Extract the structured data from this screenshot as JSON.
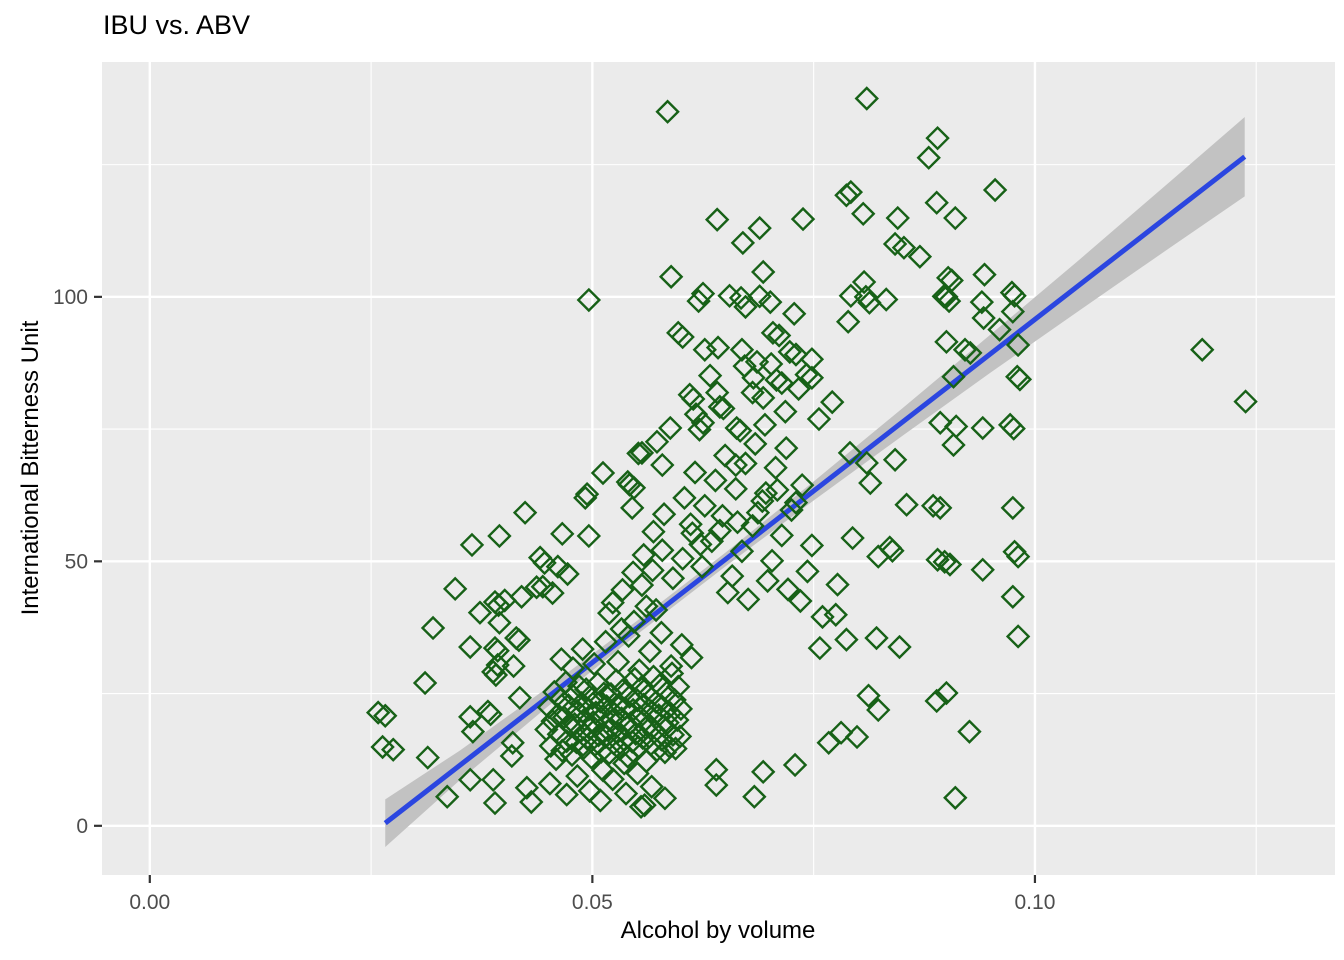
{
  "chart_data": {
    "type": "scatter",
    "title": "IBU vs. ABV",
    "xlabel": "Alcohol by volume",
    "ylabel": "International Bitterness Unit",
    "xlim": [
      -0.0054,
      0.1339
    ],
    "ylim": [
      -9.3,
      144.4
    ],
    "grid": true,
    "legend": "none",
    "x_ticks": {
      "major": [
        0,
        0.05,
        0.1
      ],
      "labels": [
        "0.00",
        "0.05",
        "0.10"
      ],
      "minor": [
        0.025,
        0.075,
        0.125
      ]
    },
    "y_ticks": {
      "major": [
        0,
        50,
        100
      ],
      "labels": [
        "0",
        "50",
        "100"
      ],
      "minor": [
        25,
        75,
        125
      ]
    },
    "style": {
      "panel_bg": "#EBEBEB",
      "grid_major_color": "#FFFFFF",
      "grid_minor_color": "#FFFFFF",
      "point_color": "#176117",
      "point_shape": "open-diamond",
      "smooth_line_color": "#2B46E0",
      "ci_band_color": "#C2C2C2",
      "tick_mark_color": "#333333",
      "tick_label_color": "#4D4D4D",
      "text_color": "#000000"
    },
    "smooth": {
      "type": "lm",
      "x": [
        0.0266,
        0.1237
      ],
      "y": [
        0.5,
        126.5
      ]
    },
    "ci_band": {
      "x": [
        0.0266,
        0.035,
        0.045,
        0.055,
        0.065,
        0.075,
        0.085,
        0.095,
        0.105,
        0.115,
        0.1237
      ],
      "lower": [
        -4.0,
        8.6,
        22.6,
        36.1,
        49.0,
        61.5,
        73.7,
        85.7,
        97.4,
        109.0,
        119.0
      ],
      "upper": [
        5.0,
        14.2,
        26.2,
        38.7,
        51.6,
        65.1,
        78.9,
        92.9,
        107.0,
        121.4,
        134.0
      ]
    },
    "points": [
      [
        0.0585,
        135
      ],
      [
        0.081,
        137.5
      ],
      [
        0.089,
        130
      ],
      [
        0.088,
        126.3
      ],
      [
        0.0792,
        119.8
      ],
      [
        0.0787,
        119.2
      ],
      [
        0.0955,
        120.2
      ],
      [
        0.0641,
        114.6
      ],
      [
        0.0689,
        113
      ],
      [
        0.067,
        110.2
      ],
      [
        0.0738,
        114.7
      ],
      [
        0.0845,
        114.9
      ],
      [
        0.0806,
        115.7
      ],
      [
        0.0889,
        117.8
      ],
      [
        0.091,
        114.9
      ],
      [
        0.0842,
        110
      ],
      [
        0.0852,
        109.3
      ],
      [
        0.087,
        107.6
      ],
      [
        0.0693,
        104.7
      ],
      [
        0.0589,
        103.8
      ],
      [
        0.0496,
        99.4
      ],
      [
        0.062,
        99.2
      ],
      [
        0.0625,
        100.6
      ],
      [
        0.0655,
        100.2
      ],
      [
        0.0668,
        99.8
      ],
      [
        0.0673,
        98.1
      ],
      [
        0.0689,
        100.1
      ],
      [
        0.0701,
        99
      ],
      [
        0.0728,
        96.8
      ],
      [
        0.0792,
        100.2
      ],
      [
        0.0807,
        102.8
      ],
      [
        0.0809,
        100
      ],
      [
        0.0813,
        98.9
      ],
      [
        0.0832,
        99.5
      ],
      [
        0.0897,
        100.1
      ],
      [
        0.0902,
        103.6
      ],
      [
        0.0906,
        103.1
      ],
      [
        0.0943,
        104.2
      ],
      [
        0.09,
        100
      ],
      [
        0.0903,
        99.2
      ],
      [
        0.094,
        99
      ],
      [
        0.0974,
        100.8
      ],
      [
        0.0977,
        100.2
      ],
      [
        0.0975,
        97.2
      ],
      [
        0.0942,
        96
      ],
      [
        0.0789,
        95.3
      ],
      [
        0.0597,
        93.2
      ],
      [
        0.0602,
        92.4
      ],
      [
        0.0704,
        93.2
      ],
      [
        0.0711,
        92.7
      ],
      [
        0.0627,
        90
      ],
      [
        0.0642,
        90.4
      ],
      [
        0.0669,
        90
      ],
      [
        0.0686,
        87.7
      ],
      [
        0.0723,
        89.6
      ],
      [
        0.073,
        89.1
      ],
      [
        0.0742,
        85.3
      ],
      [
        0.0748,
        84.7
      ],
      [
        0.0708,
        84.3
      ],
      [
        0.0714,
        83.7
      ],
      [
        0.0693,
        80.9
      ],
      [
        0.0681,
        81.9
      ],
      [
        0.061,
        81.5
      ],
      [
        0.0614,
        80.7
      ],
      [
        0.0641,
        81.9
      ],
      [
        0.0644,
        79.2
      ],
      [
        0.0625,
        76.2
      ],
      [
        0.0663,
        75.2
      ],
      [
        0.0667,
        74.7
      ],
      [
        0.0588,
        75.2
      ],
      [
        0.0579,
        68.2
      ],
      [
        0.0621,
        74.9
      ],
      [
        0.096,
        93.8
      ],
      [
        0.0981,
        90.9
      ],
      [
        0.09,
        91.5
      ],
      [
        0.0921,
        90
      ],
      [
        0.0927,
        89.4
      ],
      [
        0.0908,
        84.9
      ],
      [
        0.098,
        84.9
      ],
      [
        0.0983,
        84.4
      ],
      [
        0.1189,
        90
      ],
      [
        0.1238,
        80.2
      ],
      [
        0.0893,
        76.2
      ],
      [
        0.0911,
        75.5
      ],
      [
        0.0941,
        75.2
      ],
      [
        0.0972,
        75.8
      ],
      [
        0.0976,
        75.1
      ],
      [
        0.0908,
        72
      ],
      [
        0.0512,
        66.7
      ],
      [
        0.0542,
        64.5
      ],
      [
        0.0547,
        63.9
      ],
      [
        0.054,
        65
      ],
      [
        0.0556,
        70.5
      ],
      [
        0.0573,
        72.6
      ],
      [
        0.0552,
        70.4
      ],
      [
        0.0492,
        62
      ],
      [
        0.0494,
        62.7
      ],
      [
        0.0545,
        60.1
      ],
      [
        0.0662,
        68.2
      ],
      [
        0.0794,
        54.4
      ],
      [
        0.0836,
        52.6
      ],
      [
        0.0839,
        52
      ],
      [
        0.0823,
        50.9
      ],
      [
        0.0885,
        60.5
      ],
      [
        0.089,
        50.3
      ],
      [
        0.0855,
        60.7
      ],
      [
        0.0842,
        69.2
      ],
      [
        0.0814,
        64.8
      ],
      [
        0.081,
        68.6
      ],
      [
        0.0791,
        70.5
      ],
      [
        0.0893,
        60.1
      ],
      [
        0.0975,
        60.1
      ],
      [
        0.0977,
        51.8
      ],
      [
        0.0981,
        50.9
      ],
      [
        0.0898,
        49.9
      ],
      [
        0.0904,
        49.4
      ],
      [
        0.0941,
        48.4
      ],
      [
        0.0975,
        43.3
      ],
      [
        0.0981,
        35.8
      ],
      [
        0.0777,
        45.6
      ],
      [
        0.0775,
        39.9
      ],
      [
        0.076,
        39.5
      ],
      [
        0.0787,
        35.2
      ],
      [
        0.0821,
        35.5
      ],
      [
        0.0847,
        33.8
      ],
      [
        0.0757,
        33.6
      ],
      [
        0.0767,
        15.7
      ],
      [
        0.0781,
        17.6
      ],
      [
        0.0799,
        16.8
      ],
      [
        0.0812,
        24.6
      ],
      [
        0.0823,
        21.9
      ],
      [
        0.0889,
        23.6
      ],
      [
        0.09,
        25.1
      ],
      [
        0.091,
        5.3
      ],
      [
        0.0926,
        17.8
      ],
      [
        0.064,
        10.6
      ],
      [
        0.064,
        7.7
      ],
      [
        0.0683,
        5.5
      ],
      [
        0.0693,
        10.2
      ],
      [
        0.0729,
        11.5
      ],
      [
        0.0555,
        3.6
      ],
      [
        0.0559,
        3.9
      ],
      [
        0.0424,
        59.2
      ],
      [
        0.0395,
        54.8
      ],
      [
        0.0364,
        53.1
      ],
      [
        0.0466,
        55.2
      ],
      [
        0.0496,
        54.8
      ],
      [
        0.0345,
        44.8
      ],
      [
        0.0441,
        50.7
      ],
      [
        0.0446,
        49.7
      ],
      [
        0.0461,
        49
      ],
      [
        0.0472,
        47.6
      ],
      [
        0.0444,
        45.2
      ],
      [
        0.0455,
        44
      ],
      [
        0.0437,
        45.1
      ],
      [
        0.042,
        43.3
      ],
      [
        0.0373,
        40.3
      ],
      [
        0.039,
        42.3
      ],
      [
        0.0394,
        41.7
      ],
      [
        0.0401,
        42.6
      ],
      [
        0.0395,
        38.4
      ],
      [
        0.0414,
        35.5
      ],
      [
        0.0417,
        35.1
      ],
      [
        0.039,
        33.6
      ],
      [
        0.0393,
        33.1
      ],
      [
        0.0362,
        33.8
      ],
      [
        0.032,
        37.4
      ],
      [
        0.0393,
        30.4
      ],
      [
        0.0411,
        30.2
      ],
      [
        0.0311,
        27
      ],
      [
        0.0266,
        20.8
      ],
      [
        0.0258,
        21.4
      ],
      [
        0.0275,
        14.4
      ],
      [
        0.0263,
        14.9
      ],
      [
        0.0314,
        12.9
      ],
      [
        0.0336,
        5.5
      ],
      [
        0.0362,
        20.6
      ],
      [
        0.0365,
        17.8
      ],
      [
        0.0362,
        8.7
      ],
      [
        0.0388,
        29.1
      ],
      [
        0.0391,
        28.5
      ],
      [
        0.0382,
        21.6
      ],
      [
        0.0385,
        21.1
      ],
      [
        0.0388,
        8.7
      ],
      [
        0.039,
        4.3
      ],
      [
        0.0418,
        24.2
      ],
      [
        0.041,
        15.7
      ],
      [
        0.0409,
        13.2
      ],
      [
        0.0431,
        4.5
      ],
      [
        0.0426,
        7.2
      ],
      [
        0.0448,
        18.2
      ],
      [
        0.0451,
        22.4
      ],
      [
        0.0453,
        15.1
      ],
      [
        0.0455,
        19.8
      ],
      [
        0.0457,
        25.3
      ],
      [
        0.0459,
        12.6
      ],
      [
        0.0461,
        21.0
      ],
      [
        0.0462,
        17.3
      ],
      [
        0.0464,
        23.9
      ],
      [
        0.0466,
        14.2
      ],
      [
        0.0468,
        20.5
      ],
      [
        0.047,
        27.1
      ],
      [
        0.0471,
        16.0
      ],
      [
        0.0473,
        22.8
      ],
      [
        0.0475,
        18.9
      ],
      [
        0.0477,
        13.4
      ],
      [
        0.0478,
        24.6
      ],
      [
        0.048,
        19.2
      ],
      [
        0.0482,
        15.8
      ],
      [
        0.0483,
        21.7
      ],
      [
        0.0485,
        26.4
      ],
      [
        0.0487,
        17.9
      ],
      [
        0.0488,
        23.2
      ],
      [
        0.049,
        14.7
      ],
      [
        0.0491,
        20.1
      ],
      [
        0.0493,
        25.8
      ],
      [
        0.0494,
        16.5
      ],
      [
        0.0496,
        22.0
      ],
      [
        0.0497,
        18.4
      ],
      [
        0.0499,
        12.9
      ],
      [
        0.05,
        24.1
      ],
      [
        0.0501,
        19.6
      ],
      [
        0.0503,
        15.3
      ],
      [
        0.0504,
        21.4
      ],
      [
        0.0506,
        26.9
      ],
      [
        0.0507,
        17.1
      ],
      [
        0.0509,
        23.5
      ],
      [
        0.051,
        14.0
      ],
      [
        0.0512,
        20.8
      ],
      [
        0.0513,
        25.0
      ],
      [
        0.0515,
        16.8
      ],
      [
        0.0516,
        22.6
      ],
      [
        0.0518,
        18.0
      ],
      [
        0.0519,
        13.7
      ],
      [
        0.0521,
        24.9
      ],
      [
        0.0522,
        19.9
      ],
      [
        0.0524,
        15.6
      ],
      [
        0.0525,
        21.2
      ],
      [
        0.0527,
        27.5
      ],
      [
        0.0528,
        17.6
      ],
      [
        0.053,
        23.0
      ],
      [
        0.0531,
        14.5
      ],
      [
        0.0533,
        20.3
      ],
      [
        0.0534,
        25.6
      ],
      [
        0.0536,
        16.2
      ],
      [
        0.0537,
        22.2
      ],
      [
        0.0539,
        18.7
      ],
      [
        0.054,
        13.1
      ],
      [
        0.0542,
        24.4
      ],
      [
        0.0543,
        19.4
      ],
      [
        0.0545,
        15.9
      ],
      [
        0.0546,
        21.9
      ],
      [
        0.0548,
        27.8
      ],
      [
        0.0549,
        17.4
      ],
      [
        0.0551,
        23.7
      ],
      [
        0.0552,
        14.9
      ],
      [
        0.0554,
        20.6
      ],
      [
        0.0555,
        26.1
      ],
      [
        0.0557,
        16.6
      ],
      [
        0.0558,
        22.9
      ],
      [
        0.056,
        18.5
      ],
      [
        0.0561,
        12.2
      ],
      [
        0.0563,
        24.7
      ],
      [
        0.0564,
        19.1
      ],
      [
        0.0566,
        15.4
      ],
      [
        0.0567,
        21.6
      ],
      [
        0.0569,
        28.2
      ],
      [
        0.057,
        17.7
      ],
      [
        0.0572,
        23.4
      ],
      [
        0.0573,
        14.3
      ],
      [
        0.0575,
        20.9
      ],
      [
        0.0576,
        26.6
      ],
      [
        0.0578,
        16.3
      ],
      [
        0.0579,
        22.5
      ],
      [
        0.0581,
        18.8
      ],
      [
        0.0582,
        13.9
      ],
      [
        0.0584,
        25.2
      ],
      [
        0.0585,
        19.5
      ],
      [
        0.0587,
        15.0
      ],
      [
        0.0588,
        21.3
      ],
      [
        0.059,
        28.8
      ],
      [
        0.0591,
        17.2
      ],
      [
        0.0593,
        23.8
      ],
      [
        0.0594,
        14.6
      ],
      [
        0.0596,
        20.0
      ],
      [
        0.0597,
        26.3
      ],
      [
        0.0599,
        16.9
      ],
      [
        0.06,
        22.1
      ],
      [
        0.0465,
        31.5
      ],
      [
        0.0478,
        29.8
      ],
      [
        0.0489,
        33.4
      ],
      [
        0.0502,
        30.6
      ],
      [
        0.0515,
        34.8
      ],
      [
        0.0529,
        31.0
      ],
      [
        0.0541,
        35.9
      ],
      [
        0.0553,
        29.4
      ],
      [
        0.0565,
        33.0
      ],
      [
        0.0578,
        36.5
      ],
      [
        0.0589,
        30.2
      ],
      [
        0.0601,
        34.2
      ],
      [
        0.0612,
        31.8
      ],
      [
        0.0547,
        38.6
      ],
      [
        0.0519,
        40.2
      ],
      [
        0.0561,
        41.5
      ],
      [
        0.0533,
        37.2
      ],
      [
        0.0572,
        40.8
      ],
      [
        0.0452,
        8.0
      ],
      [
        0.0471,
        5.9
      ],
      [
        0.0483,
        9.4
      ],
      [
        0.0497,
        6.6
      ],
      [
        0.0509,
        4.8
      ],
      [
        0.0523,
        8.8
      ],
      [
        0.0538,
        6.1
      ],
      [
        0.0551,
        9.9
      ],
      [
        0.0567,
        7.4
      ],
      [
        0.0582,
        5.2
      ],
      [
        0.0512,
        10.5
      ],
      [
        0.0536,
        11.8
      ],
      [
        0.0556,
        45.5
      ],
      [
        0.0568,
        48.3
      ],
      [
        0.0579,
        52.1
      ],
      [
        0.0591,
        46.8
      ],
      [
        0.0602,
        50.5
      ],
      [
        0.0613,
        55.3
      ],
      [
        0.0624,
        49.0
      ],
      [
        0.0635,
        53.8
      ],
      [
        0.0647,
        58.6
      ],
      [
        0.0658,
        47.2
      ],
      [
        0.0669,
        51.9
      ],
      [
        0.0681,
        56.7
      ],
      [
        0.0692,
        61.4
      ],
      [
        0.0703,
        50.1
      ],
      [
        0.0714,
        54.9
      ],
      [
        0.0725,
        59.7
      ],
      [
        0.0737,
        64.4
      ],
      [
        0.0748,
        53.0
      ],
      [
        0.0604,
        62.0
      ],
      [
        0.0616,
        66.8
      ],
      [
        0.0627,
        60.5
      ],
      [
        0.0639,
        65.3
      ],
      [
        0.065,
        70.0
      ],
      [
        0.0662,
        63.7
      ],
      [
        0.0673,
        68.5
      ],
      [
        0.0684,
        72.2
      ],
      [
        0.0696,
        62.9
      ],
      [
        0.0707,
        67.7
      ],
      [
        0.0719,
        71.4
      ],
      [
        0.073,
        61.1
      ],
      [
        0.0581,
        58.9
      ],
      [
        0.0569,
        55.6
      ],
      [
        0.0558,
        51.2
      ],
      [
        0.0546,
        47.9
      ],
      [
        0.0534,
        44.6
      ],
      [
        0.0523,
        42.2
      ],
      [
        0.0653,
        44.1
      ],
      [
        0.0676,
        42.8
      ],
      [
        0.0698,
        46.3
      ],
      [
        0.0721,
        44.7
      ],
      [
        0.0743,
        48.1
      ],
      [
        0.0735,
        42.5
      ],
      [
        0.0664,
        57.4
      ],
      [
        0.0687,
        59.2
      ],
      [
        0.0709,
        63.5
      ],
      [
        0.0611,
        57.0
      ],
      [
        0.0622,
        53.2
      ],
      [
        0.0644,
        55.8
      ],
      [
        0.0617,
        77.8
      ],
      [
        0.0633,
        85.1
      ],
      [
        0.0648,
        78.9
      ],
      [
        0.0672,
        86.9
      ],
      [
        0.0695,
        75.8
      ],
      [
        0.0718,
        78.3
      ],
      [
        0.0733,
        82.6
      ],
      [
        0.0756,
        76.9
      ],
      [
        0.0771,
        80.1
      ],
      [
        0.0748,
        88.2
      ],
      [
        0.0702,
        87.3
      ],
      [
        0.0682,
        84.7
      ]
    ]
  }
}
